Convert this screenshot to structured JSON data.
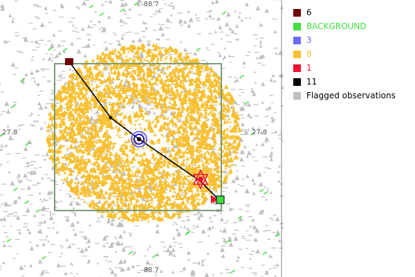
{
  "plot": {
    "axis_labels": {
      "top": "-88.7",
      "bottom": "-88.7",
      "left": "27.8",
      "right": "27.8"
    },
    "colors": {
      "background": "#ffffff",
      "flagged": "#c0c0c0",
      "main_points": "#f8c030",
      "box": "#7a9a7a",
      "track": "#000000"
    }
  },
  "legend": {
    "items": [
      {
        "label": "6",
        "color": "#6e0000",
        "text_color": "#000000"
      },
      {
        "label": "BACKGROUND",
        "color": "#40e040",
        "text_color": "#40e040"
      },
      {
        "label": "3",
        "color": "#6a6aff",
        "text_color": "#6a6aff"
      },
      {
        "label": "8",
        "color": "#f8c030",
        "text_color": "#f8c030"
      },
      {
        "label": "1",
        "color": "#ee1030",
        "text_color": "#ee1030"
      },
      {
        "label": "11",
        "color": "#000000",
        "text_color": "#000000"
      },
      {
        "label": "Flagged observations",
        "color": "#c0c0c0",
        "text_color": "#000000"
      }
    ]
  }
}
